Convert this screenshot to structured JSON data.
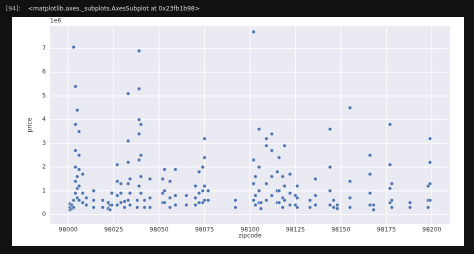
{
  "cell": {
    "prompt": "[94]:",
    "output": "<matplotlib.axes._subplots.AxesSubplot at 0x23fb1b98>"
  },
  "chart_data": {
    "type": "scatter",
    "x_label": "zipcode",
    "y_label": "price",
    "y_offset_label": "1e6",
    "x": [
      98001,
      98001,
      98001,
      98002,
      98002,
      98003,
      98003,
      98003,
      98004,
      98004,
      98004,
      98004,
      98004,
      98004,
      98005,
      98005,
      98005,
      98005,
      98006,
      98006,
      98006,
      98006,
      98006,
      98008,
      98008,
      98008,
      98010,
      98010,
      98014,
      98014,
      98014,
      98019,
      98019,
      98022,
      98022,
      98023,
      98023,
      98024,
      98024,
      98027,
      98027,
      98027,
      98027,
      98029,
      98029,
      98029,
      98031,
      98031,
      98033,
      98033,
      98033,
      98033,
      98033,
      98034,
      98034,
      98034,
      98038,
      98038,
      98039,
      98039,
      98039,
      98039,
      98039,
      98039,
      98040,
      98040,
      98040,
      98040,
      98042,
      98042,
      98045,
      98045,
      98045,
      98052,
      98052,
      98052,
      98053,
      98053,
      98053,
      98056,
      98056,
      98056,
      98059,
      98059,
      98059,
      98065,
      98065,
      98070,
      98070,
      98070,
      98072,
      98072,
      98072,
      98074,
      98074,
      98074,
      98075,
      98075,
      98075,
      98075,
      98077,
      98077,
      98092,
      98092,
      98102,
      98102,
      98102,
      98102,
      98103,
      98103,
      98103,
      98105,
      98105,
      98105,
      98105,
      98106,
      98106,
      98109,
      98109,
      98109,
      98109,
      98112,
      98112,
      98112,
      98112,
      98115,
      98115,
      98115,
      98116,
      98116,
      98116,
      98118,
      98118,
      98118,
      98119,
      98119,
      98119,
      98122,
      98122,
      98122,
      98125,
      98125,
      98126,
      98126,
      98126,
      98133,
      98133,
      98136,
      98136,
      98136,
      98144,
      98144,
      98144,
      98144,
      98146,
      98146,
      98148,
      98148,
      98155,
      98155,
      98155,
      98155,
      98166,
      98166,
      98166,
      98166,
      98168,
      98168,
      98177,
      98177,
      98177,
      98177,
      98178,
      98178,
      98178,
      98188,
      98188,
      98198,
      98198,
      98198,
      98199,
      98199,
      98199,
      98199
    ],
    "values": [
      0.2,
      0.3,
      0.45,
      0.25,
      0.4,
      0.3,
      0.6,
      7.06,
      0.9,
      1.4,
      2.0,
      2.7,
      3.8,
      5.4,
      0.7,
      1.1,
      1.6,
      4.4,
      0.6,
      1.2,
      1.9,
      2.5,
      3.5,
      0.5,
      0.9,
      1.7,
      0.4,
      0.7,
      0.3,
      0.6,
      1.0,
      0.3,
      0.6,
      0.25,
      0.5,
      0.2,
      0.4,
      0.4,
      0.9,
      0.4,
      0.8,
      1.4,
      2.1,
      0.5,
      0.9,
      1.3,
      0.3,
      0.55,
      0.6,
      1.3,
      2.2,
      3.1,
      5.1,
      0.4,
      0.9,
      1.5,
      0.3,
      0.6,
      1.2,
      2.3,
      3.4,
      4.0,
      5.3,
      6.9,
      0.9,
      1.6,
      2.5,
      3.8,
      0.3,
      0.6,
      0.3,
      0.7,
      1.5,
      0.5,
      0.9,
      1.5,
      0.5,
      1.0,
      1.9,
      0.3,
      0.7,
      1.4,
      0.4,
      0.8,
      1.9,
      0.4,
      0.8,
      0.4,
      0.7,
      1.2,
      0.5,
      0.9,
      1.8,
      0.5,
      1.0,
      2.0,
      0.6,
      1.2,
      2.4,
      3.2,
      0.6,
      1.0,
      0.3,
      0.6,
      0.6,
      1.3,
      2.3,
      7.7,
      0.4,
      0.8,
      1.6,
      0.5,
      1.0,
      2.0,
      3.6,
      0.25,
      0.5,
      0.6,
      1.3,
      2.9,
      3.2,
      0.8,
      1.6,
      2.7,
      3.4,
      0.5,
      1.0,
      1.8,
      0.5,
      1.0,
      2.4,
      0.3,
      0.7,
      1.6,
      0.6,
      1.2,
      2.9,
      0.4,
      0.9,
      1.7,
      0.4,
      0.8,
      0.3,
      0.7,
      1.2,
      0.3,
      0.6,
      0.4,
      0.8,
      1.5,
      0.4,
      1.0,
      2.0,
      3.6,
      0.3,
      0.6,
      0.25,
      0.4,
      0.3,
      0.7,
      1.4,
      4.5,
      0.4,
      0.9,
      1.7,
      2.5,
      0.2,
      0.4,
      0.5,
      1.1,
      2.1,
      3.8,
      0.3,
      0.6,
      1.3,
      0.3,
      0.5,
      0.3,
      0.6,
      1.2,
      0.6,
      1.3,
      2.2,
      3.2
    ],
    "color": "#4c72b0",
    "xlim": [
      97990,
      98210
    ],
    "ylim": [
      -0.4,
      7.95
    ],
    "xticks": [
      98000,
      98025,
      98050,
      98075,
      98100,
      98125,
      98150,
      98175,
      98200
    ],
    "yticks": [
      0,
      1,
      2,
      3,
      4,
      5,
      6,
      7
    ],
    "grid": true
  }
}
